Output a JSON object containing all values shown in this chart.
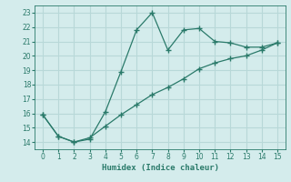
{
  "xlabel": "Humidex (Indice chaleur)",
  "bg_color": "#d4ecec",
  "line_color": "#2a7a6a",
  "grid_color": "#b8d8d8",
  "xlim": [
    -0.5,
    15.5
  ],
  "ylim": [
    13.5,
    23.5
  ],
  "xticks": [
    0,
    1,
    2,
    3,
    4,
    5,
    6,
    7,
    8,
    9,
    10,
    11,
    12,
    13,
    14,
    15
  ],
  "yticks": [
    14,
    15,
    16,
    17,
    18,
    19,
    20,
    21,
    22,
    23
  ],
  "series1_x": [
    0,
    1,
    2,
    3,
    4,
    5,
    6,
    7,
    8,
    9,
    10,
    11,
    12,
    13,
    14,
    15
  ],
  "series1_y": [
    15.9,
    14.4,
    14.0,
    14.2,
    16.1,
    18.9,
    21.8,
    23.0,
    20.4,
    21.8,
    21.9,
    21.0,
    20.9,
    20.6,
    20.6,
    20.9
  ],
  "series2_x": [
    0,
    1,
    2,
    3,
    4,
    5,
    6,
    7,
    8,
    9,
    10,
    11,
    12,
    13,
    14,
    15
  ],
  "series2_y": [
    15.9,
    14.4,
    14.0,
    14.3,
    15.1,
    15.9,
    16.6,
    17.3,
    17.8,
    18.4,
    19.1,
    19.5,
    19.8,
    20.0,
    20.4,
    20.9
  ]
}
